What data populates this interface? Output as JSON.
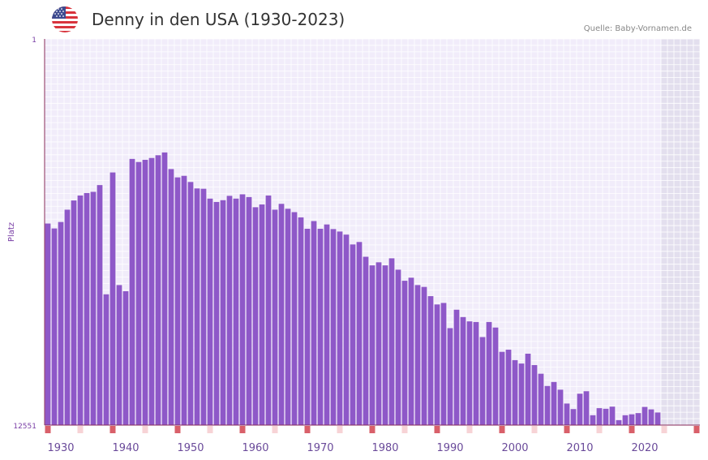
{
  "header": {
    "title": "Denny in den USA (1930-2023)",
    "source": "Quelle: Baby-Vornamen.de",
    "flag_icon": "us-flag-icon"
  },
  "colors": {
    "bar": "#8e58c8",
    "plot_bg": "#f1ecfa",
    "grid": "#ffffff",
    "future_bg": "#e3dfee",
    "axis": "#8a2b5a",
    "marker_strong": "#d9606a",
    "marker_light": "#f7d3d6"
  },
  "chart_data": {
    "type": "bar",
    "title": "Denny in den USA (1930-2023)",
    "xlabel": "",
    "ylabel": "Platz",
    "y_inverted": true,
    "ylim": [
      1,
      12551
    ],
    "y_ticks": [
      "1",
      "12551"
    ],
    "xlim": [
      1928,
      2028
    ],
    "x_ticks": [
      1930,
      1940,
      1950,
      1960,
      1970,
      1980,
      1990,
      2000,
      2010,
      2020
    ],
    "years": [
      1928,
      1929,
      1930,
      1931,
      1932,
      1933,
      1934,
      1935,
      1936,
      1937,
      1938,
      1939,
      1940,
      1941,
      1942,
      1943,
      1944,
      1945,
      1946,
      1947,
      1948,
      1949,
      1950,
      1951,
      1952,
      1953,
      1954,
      1955,
      1956,
      1957,
      1958,
      1959,
      1960,
      1961,
      1962,
      1963,
      1964,
      1965,
      1966,
      1967,
      1968,
      1969,
      1970,
      1971,
      1972,
      1973,
      1974,
      1975,
      1976,
      1977,
      1978,
      1979,
      1980,
      1981,
      1982,
      1983,
      1984,
      1985,
      1986,
      1987,
      1988,
      1989,
      1990,
      1991,
      1992,
      1993,
      1994,
      1995,
      1996,
      1997,
      1998,
      1999,
      2000,
      2001,
      2002,
      2003,
      2004,
      2005,
      2006,
      2007,
      2008,
      2009,
      2010,
      2011,
      2012,
      2013,
      2014,
      2015,
      2016,
      2017,
      2018,
      2019,
      2020,
      2021,
      2022
    ],
    "ranks": [
      6000,
      6160,
      5950,
      5550,
      5250,
      5090,
      5010,
      4970,
      4750,
      8300,
      4340,
      8000,
      8200,
      3900,
      4000,
      3930,
      3870,
      3780,
      3690,
      4230,
      4500,
      4450,
      4650,
      4860,
      4870,
      5190,
      5300,
      5240,
      5100,
      5190,
      5050,
      5140,
      5470,
      5380,
      5090,
      5550,
      5360,
      5520,
      5630,
      5800,
      6170,
      5920,
      6170,
      6030,
      6180,
      6260,
      6360,
      6680,
      6600,
      7080,
      7360,
      7260,
      7360,
      7130,
      7500,
      7860,
      7760,
      8000,
      8060,
      8360,
      8630,
      8580,
      9400,
      8800,
      9040,
      9180,
      9200,
      9690,
      9200,
      9380,
      10170,
      10100,
      10440,
      10550,
      10230,
      10600,
      10880,
      11280,
      11150,
      11400,
      11850,
      12030,
      11530,
      11450,
      12230,
      12000,
      12020,
      11950,
      12390,
      12230,
      12200,
      12160,
      11960,
      12040,
      12140
    ],
    "rank_unit": "Platz"
  }
}
